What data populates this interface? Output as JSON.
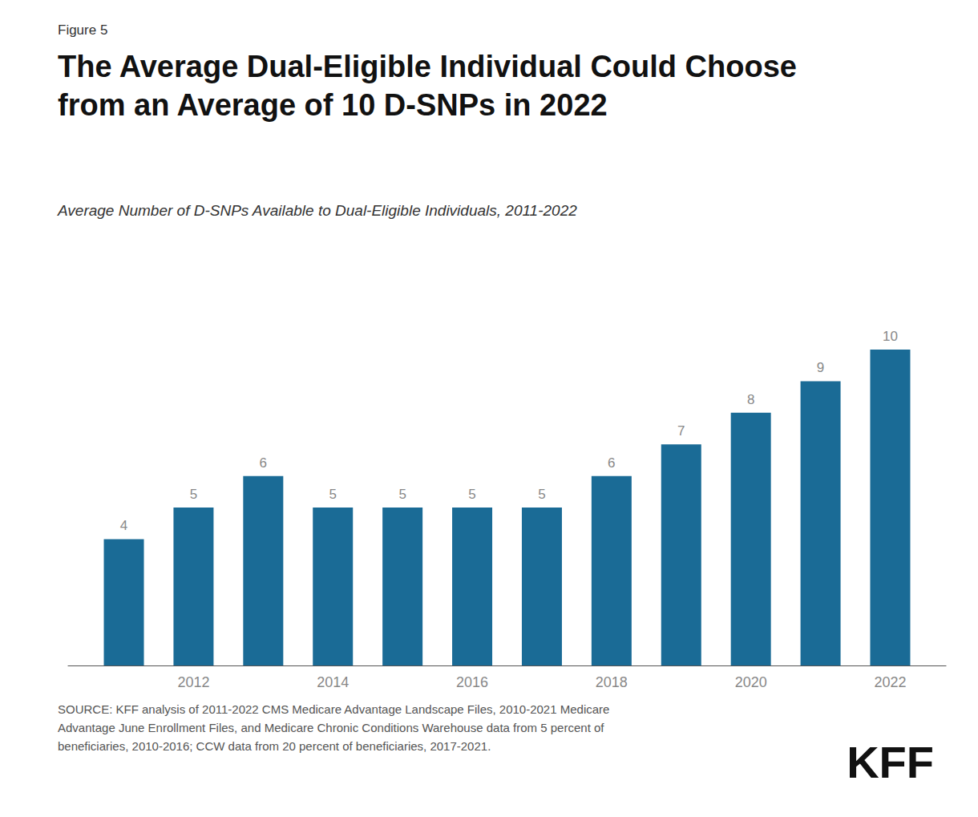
{
  "chart_data": {
    "type": "bar",
    "title": "The Average Dual-Eligible Individual Could Choose\nfrom an Average of 10 D-SNPs in 2022",
    "subtitle": "Average Number of D-SNPs Available to Dual-Eligible Individuals, 2011-2022",
    "annotations": [
      "Figure 5",
      "SOURCE: KFF analysis of 2011-2022 CMS Medicare Advantage Landscape Files, 2010-2021 Medicare\nAdvantage June Enrollment Files, and Medicare Chronic Conditions Warehouse data from 5 percent of\nbeneficiaries, 2010-2016; CCW data from 20 percent of beneficiaries, 2017-2021.",
      "KFF"
    ],
    "x": [
      2011,
      2012,
      2013,
      2014,
      2015,
      2016,
      2017,
      2018,
      2019,
      2020,
      2021,
      2022
    ],
    "values": [
      4,
      5,
      6,
      5,
      5,
      5,
      5,
      6,
      7,
      8,
      9,
      10
    ],
    "color": "#1a6b96",
    "xlim": [
      2010.2,
      2022.8
    ],
    "xticks": [
      2012,
      2014,
      2016,
      2018,
      2020,
      2022
    ],
    "ylim": [
      0,
      11.5
    ],
    "grid": false,
    "data_labels": true,
    "tick_labels": "x"
  }
}
